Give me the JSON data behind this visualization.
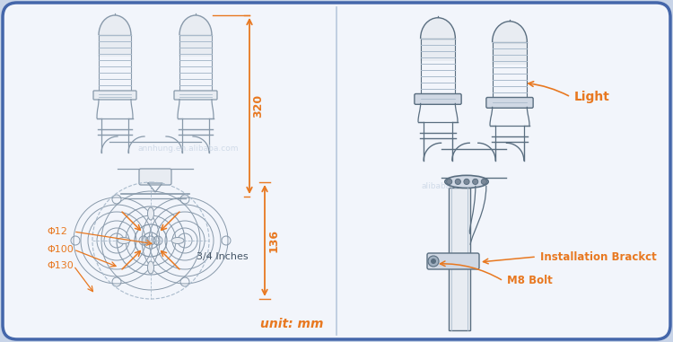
{
  "bg_outer": "#c8d4e8",
  "bg_panel": "#f2f5fb",
  "border_color": "#4466aa",
  "divider_color": "#b8c8dc",
  "line_color": "#8899aa",
  "line_color2": "#aabbcc",
  "line_light": "#ccddee",
  "orange_color": "#e87820",
  "dk": "#5a6e80",
  "fill_light": "#e8ecf2",
  "fill_dark": "#d0d8e4",
  "watermark_color": "#c8d4e4",
  "label_light": "Light",
  "label_bracket": "Installation Brackct",
  "label_bolt": "M8 Bolt",
  "label_34inch": "3/4 Inches",
  "label_unit": "unit: mm",
  "dim_320": "320",
  "dim_136": "136",
  "dim_phi12": "Φ12",
  "dim_phi100": "Φ100",
  "dim_phi130": "Φ130",
  "watermark_left": "annhung.en.alibaba.com",
  "watermark_right": "alibaba.com",
  "fig_width": 7.5,
  "fig_height": 3.81,
  "dpi": 100
}
